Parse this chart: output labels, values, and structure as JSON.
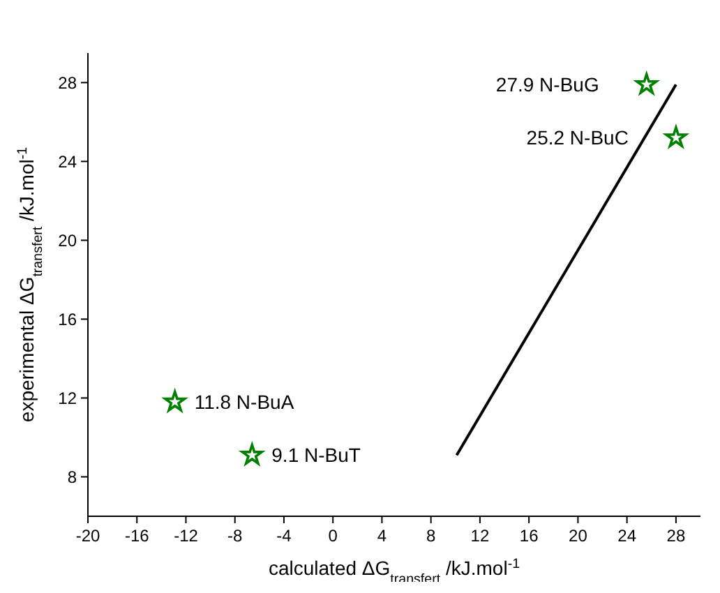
{
  "chart_data": {
    "type": "scatter",
    "xlabel": "calculated ΔG$_{transfert}$ /kJ.mol$^{-1}$",
    "ylabel": "experimental ΔG$_{transfert}$ /kJ.mol$^{-1}$",
    "xlim": [
      -20,
      30
    ],
    "ylim": [
      6,
      29.5
    ],
    "xticks": [
      -20,
      -16,
      -12,
      -8,
      -4,
      0,
      4,
      8,
      12,
      16,
      20,
      24,
      28
    ],
    "yticks": [
      8,
      12,
      16,
      20,
      24,
      28
    ],
    "marker": "star",
    "series": [
      {
        "type": "scatter",
        "color": "#008000",
        "x": [
          -12.9,
          -6.6,
          25.6,
          28.0
        ],
        "values": [
          11.8,
          9.1,
          27.9,
          25.2
        ]
      },
      {
        "type": "line",
        "marker": "none",
        "color": "#000000",
        "x": [
          10.1,
          28
        ],
        "values": [
          9.1,
          27.9
        ]
      }
    ],
    "annotations": [
      {
        "text": "11.8 N-BuA",
        "x": -12.9,
        "y": 11.8
      },
      {
        "text": "9.1 N-BuT",
        "x": -6.6,
        "y": 9.1
      },
      {
        "text": "27.9 N-BuG",
        "x": 25.6,
        "y": 27.9
      },
      {
        "text": "25.2 N-BuC",
        "x": 28.0,
        "y": 25.2
      }
    ]
  }
}
